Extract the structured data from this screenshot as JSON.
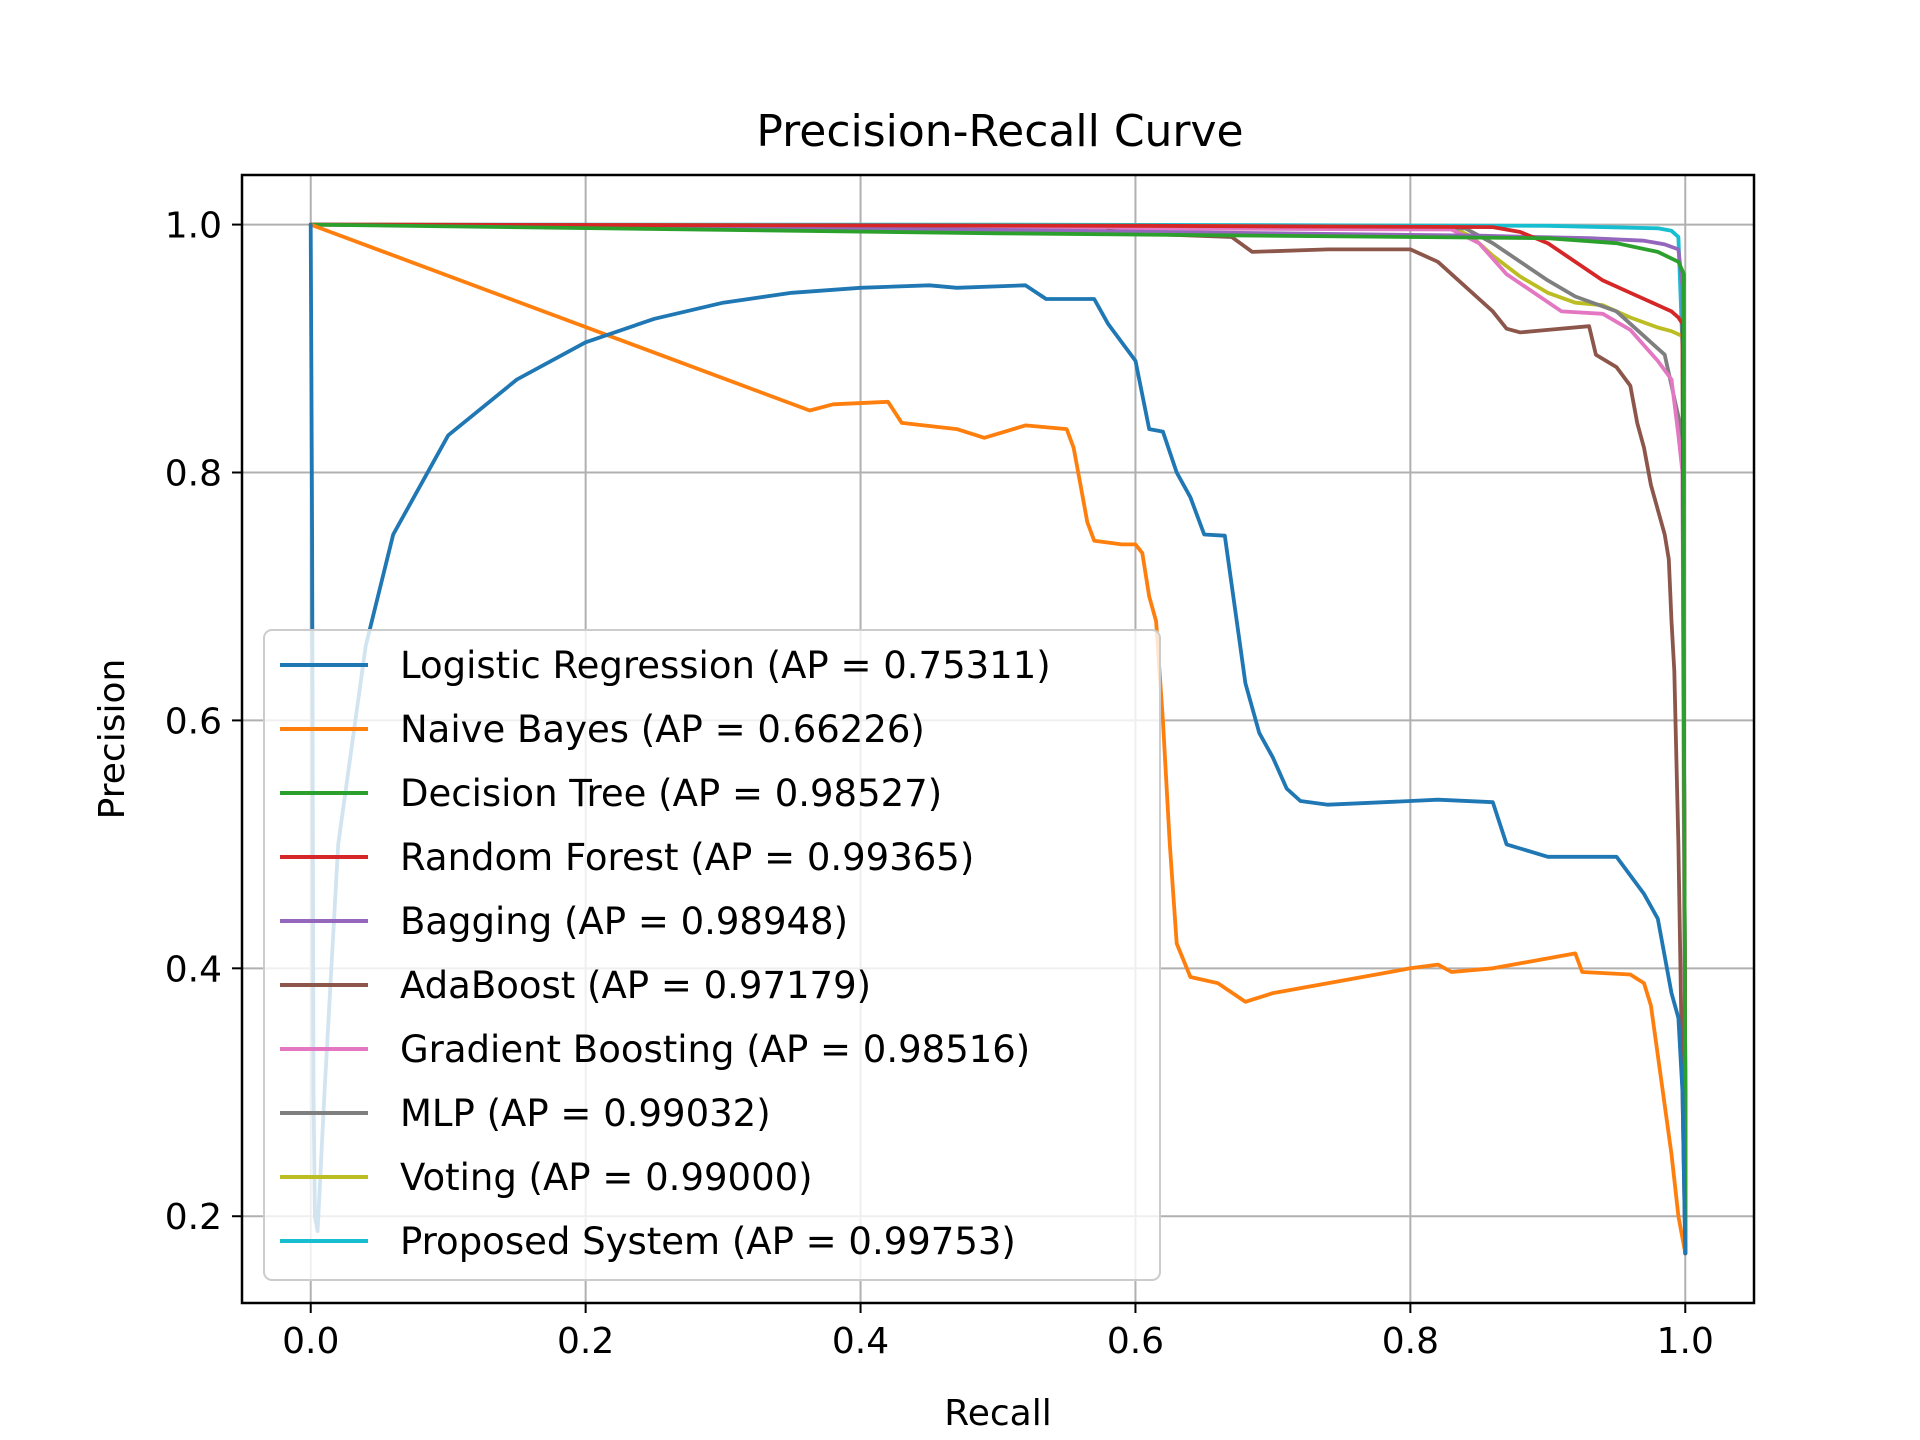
{
  "chart_data": {
    "type": "line",
    "title": "Precision-Recall Curve",
    "xlabel": "Recall",
    "ylabel": "Precision",
    "xlim": [
      -0.05,
      1.05
    ],
    "ylim": [
      0.13,
      1.04
    ],
    "xticks": [
      0.0,
      0.2,
      0.4,
      0.6,
      0.8,
      1.0
    ],
    "xtick_labels": [
      "0.0",
      "0.2",
      "0.4",
      "0.6",
      "0.8",
      "1.0"
    ],
    "yticks": [
      0.2,
      0.4,
      0.6,
      0.8,
      1.0
    ],
    "ytick_labels": [
      "0.2",
      "0.4",
      "0.6",
      "0.8",
      "1.0"
    ],
    "grid": true,
    "legend_location": "lower-left",
    "series": [
      {
        "name": "Proposed System (AP = 0.99753)",
        "color": "#17becf",
        "points": [
          [
            0,
            1.0
          ],
          [
            0.5,
            1.0
          ],
          [
            0.9,
            0.999
          ],
          [
            0.98,
            0.997
          ],
          [
            0.99,
            0.995
          ],
          [
            0.995,
            0.99
          ],
          [
            0.998,
            0.9
          ],
          [
            0.999,
            0.6
          ],
          [
            1.0,
            0.3
          ],
          [
            1.0,
            0.17
          ]
        ]
      },
      {
        "name": "Voting (AP = 0.99000)",
        "color": "#bcbd22",
        "points": [
          [
            0,
            1.0
          ],
          [
            0.6,
            0.999
          ],
          [
            0.83,
            0.998
          ],
          [
            0.845,
            0.99
          ],
          [
            0.86,
            0.975
          ],
          [
            0.88,
            0.958
          ],
          [
            0.9,
            0.945
          ],
          [
            0.92,
            0.937
          ],
          [
            0.94,
            0.935
          ],
          [
            0.96,
            0.925
          ],
          [
            0.98,
            0.917
          ],
          [
            0.99,
            0.914
          ],
          [
            0.998,
            0.91
          ],
          [
            0.999,
            0.6
          ],
          [
            1.0,
            0.3
          ],
          [
            1.0,
            0.17
          ]
        ]
      },
      {
        "name": "MLP (AP = 0.99032)",
        "color": "#7f7f7f",
        "points": [
          [
            0,
            1.0
          ],
          [
            0.6,
            0.998
          ],
          [
            0.84,
            0.997
          ],
          [
            0.86,
            0.985
          ],
          [
            0.88,
            0.97
          ],
          [
            0.9,
            0.955
          ],
          [
            0.92,
            0.942
          ],
          [
            0.95,
            0.93
          ],
          [
            0.97,
            0.91
          ],
          [
            0.985,
            0.895
          ],
          [
            0.992,
            0.86
          ],
          [
            0.996,
            0.84
          ],
          [
            0.998,
            0.8
          ],
          [
            0.999,
            0.6
          ],
          [
            1.0,
            0.3
          ],
          [
            1.0,
            0.17
          ]
        ]
      },
      {
        "name": "Gradient Boosting (AP = 0.98516)",
        "color": "#e377c2",
        "points": [
          [
            0,
            1.0
          ],
          [
            0.6,
            0.997
          ],
          [
            0.83,
            0.996
          ],
          [
            0.85,
            0.985
          ],
          [
            0.87,
            0.96
          ],
          [
            0.89,
            0.945
          ],
          [
            0.91,
            0.93
          ],
          [
            0.94,
            0.928
          ],
          [
            0.96,
            0.915
          ],
          [
            0.98,
            0.89
          ],
          [
            0.99,
            0.875
          ],
          [
            0.995,
            0.83
          ],
          [
            0.998,
            0.8
          ],
          [
            0.999,
            0.5
          ],
          [
            1.0,
            0.3
          ],
          [
            1.0,
            0.17
          ]
        ]
      },
      {
        "name": "AdaBoost (AP = 0.97179)",
        "color": "#8c564b",
        "points": [
          [
            0.58,
            0.995
          ],
          [
            0.62,
            0.992
          ],
          [
            0.67,
            0.99
          ],
          [
            0.685,
            0.978
          ],
          [
            0.74,
            0.98
          ],
          [
            0.8,
            0.98
          ],
          [
            0.82,
            0.97
          ],
          [
            0.86,
            0.93
          ],
          [
            0.87,
            0.916
          ],
          [
            0.88,
            0.913
          ],
          [
            0.9,
            0.915
          ],
          [
            0.93,
            0.918
          ],
          [
            0.935,
            0.895
          ],
          [
            0.95,
            0.885
          ],
          [
            0.96,
            0.87
          ],
          [
            0.965,
            0.84
          ],
          [
            0.97,
            0.82
          ],
          [
            0.975,
            0.79
          ],
          [
            0.98,
            0.77
          ],
          [
            0.985,
            0.75
          ],
          [
            0.988,
            0.73
          ],
          [
            0.99,
            0.68
          ],
          [
            0.992,
            0.64
          ],
          [
            0.995,
            0.5
          ],
          [
            0.998,
            0.3
          ],
          [
            1.0,
            0.17
          ]
        ]
      },
      {
        "name": "Bagging (AP = 0.98948)",
        "color": "#9467bd",
        "points": [
          [
            0,
            1.0
          ],
          [
            0.4,
            0.997
          ],
          [
            0.7,
            0.993
          ],
          [
            0.85,
            0.991
          ],
          [
            0.93,
            0.989
          ],
          [
            0.97,
            0.987
          ],
          [
            0.985,
            0.984
          ],
          [
            0.995,
            0.98
          ],
          [
            0.998,
            0.95
          ],
          [
            0.999,
            0.6
          ],
          [
            1.0,
            0.3
          ],
          [
            1.0,
            0.17
          ]
        ]
      },
      {
        "name": "Random Forest (AP = 0.99365)",
        "color": "#d62728",
        "points": [
          [
            0,
            1.0
          ],
          [
            0.6,
            0.999
          ],
          [
            0.86,
            0.998
          ],
          [
            0.88,
            0.994
          ],
          [
            0.9,
            0.985
          ],
          [
            0.92,
            0.97
          ],
          [
            0.94,
            0.955
          ],
          [
            0.96,
            0.945
          ],
          [
            0.98,
            0.935
          ],
          [
            0.99,
            0.93
          ],
          [
            0.995,
            0.925
          ],
          [
            0.998,
            0.92
          ],
          [
            0.999,
            0.6
          ],
          [
            1.0,
            0.3
          ],
          [
            1.0,
            0.17
          ]
        ]
      },
      {
        "name": "Decision Tree (AP = 0.98527)",
        "color": "#2ca02c",
        "points": [
          [
            0,
            1.0
          ],
          [
            0.5,
            0.993
          ],
          [
            0.8,
            0.99
          ],
          [
            0.9,
            0.989
          ],
          [
            0.95,
            0.985
          ],
          [
            0.98,
            0.978
          ],
          [
            0.995,
            0.97
          ],
          [
            0.999,
            0.96
          ],
          [
            0.999,
            0.6
          ],
          [
            1.0,
            0.3
          ],
          [
            1.0,
            0.17
          ]
        ]
      },
      {
        "name": "Naive Bayes (AP = 0.66226)",
        "color": "#ff7f0e",
        "points": [
          [
            0.0,
            1.0
          ],
          [
            0.363,
            0.85
          ],
          [
            0.38,
            0.855
          ],
          [
            0.42,
            0.857
          ],
          [
            0.43,
            0.84
          ],
          [
            0.47,
            0.835
          ],
          [
            0.49,
            0.828
          ],
          [
            0.52,
            0.838
          ],
          [
            0.55,
            0.835
          ],
          [
            0.555,
            0.82
          ],
          [
            0.56,
            0.79
          ],
          [
            0.565,
            0.76
          ],
          [
            0.57,
            0.745
          ],
          [
            0.59,
            0.742
          ],
          [
            0.6,
            0.742
          ],
          [
            0.605,
            0.735
          ],
          [
            0.61,
            0.7
          ],
          [
            0.615,
            0.68
          ],
          [
            0.62,
            0.6
          ],
          [
            0.625,
            0.5
          ],
          [
            0.63,
            0.42
          ],
          [
            0.64,
            0.393
          ],
          [
            0.66,
            0.388
          ],
          [
            0.68,
            0.373
          ],
          [
            0.7,
            0.38
          ],
          [
            0.75,
            0.39
          ],
          [
            0.8,
            0.4
          ],
          [
            0.82,
            0.403
          ],
          [
            0.83,
            0.397
          ],
          [
            0.86,
            0.4
          ],
          [
            0.92,
            0.412
          ],
          [
            0.925,
            0.397
          ],
          [
            0.96,
            0.395
          ],
          [
            0.97,
            0.388
          ],
          [
            0.975,
            0.37
          ],
          [
            0.98,
            0.33
          ],
          [
            0.99,
            0.25
          ],
          [
            0.995,
            0.2
          ],
          [
            1.0,
            0.17
          ]
        ]
      },
      {
        "name": "Logistic Regression (AP = 0.75311)",
        "color": "#1f77b4",
        "points": [
          [
            0.0,
            1.0
          ],
          [
            0.001,
            0.75
          ],
          [
            0.002,
            0.3
          ],
          [
            0.003,
            0.2
          ],
          [
            0.005,
            0.188
          ],
          [
            0.01,
            0.3
          ],
          [
            0.02,
            0.5
          ],
          [
            0.04,
            0.66
          ],
          [
            0.06,
            0.75
          ],
          [
            0.1,
            0.83
          ],
          [
            0.15,
            0.875
          ],
          [
            0.2,
            0.905
          ],
          [
            0.25,
            0.924
          ],
          [
            0.3,
            0.937
          ],
          [
            0.35,
            0.945
          ],
          [
            0.4,
            0.949
          ],
          [
            0.45,
            0.951
          ],
          [
            0.47,
            0.949
          ],
          [
            0.52,
            0.951
          ],
          [
            0.535,
            0.94
          ],
          [
            0.57,
            0.94
          ],
          [
            0.58,
            0.92
          ],
          [
            0.6,
            0.89
          ],
          [
            0.61,
            0.835
          ],
          [
            0.62,
            0.833
          ],
          [
            0.63,
            0.8
          ],
          [
            0.64,
            0.78
          ],
          [
            0.65,
            0.75
          ],
          [
            0.665,
            0.749
          ],
          [
            0.675,
            0.67
          ],
          [
            0.68,
            0.63
          ],
          [
            0.69,
            0.59
          ],
          [
            0.7,
            0.57
          ],
          [
            0.71,
            0.545
          ],
          [
            0.72,
            0.535
          ],
          [
            0.74,
            0.532
          ],
          [
            0.8,
            0.535
          ],
          [
            0.82,
            0.536
          ],
          [
            0.86,
            0.534
          ],
          [
            0.87,
            0.5
          ],
          [
            0.9,
            0.49
          ],
          [
            0.95,
            0.49
          ],
          [
            0.97,
            0.46
          ],
          [
            0.98,
            0.44
          ],
          [
            0.99,
            0.38
          ],
          [
            0.995,
            0.36
          ],
          [
            0.998,
            0.3
          ],
          [
            1.0,
            0.17
          ]
        ]
      }
    ],
    "legend_order": [
      "Logistic Regression (AP = 0.75311)",
      "Naive Bayes (AP = 0.66226)",
      "Decision Tree (AP = 0.98527)",
      "Random Forest (AP = 0.99365)",
      "Bagging (AP = 0.98948)",
      "AdaBoost (AP = 0.97179)",
      "Gradient Boosting (AP = 0.98516)",
      "MLP (AP = 0.99032)",
      "Voting (AP = 0.99000)",
      "Proposed System (AP = 0.99753)"
    ]
  }
}
